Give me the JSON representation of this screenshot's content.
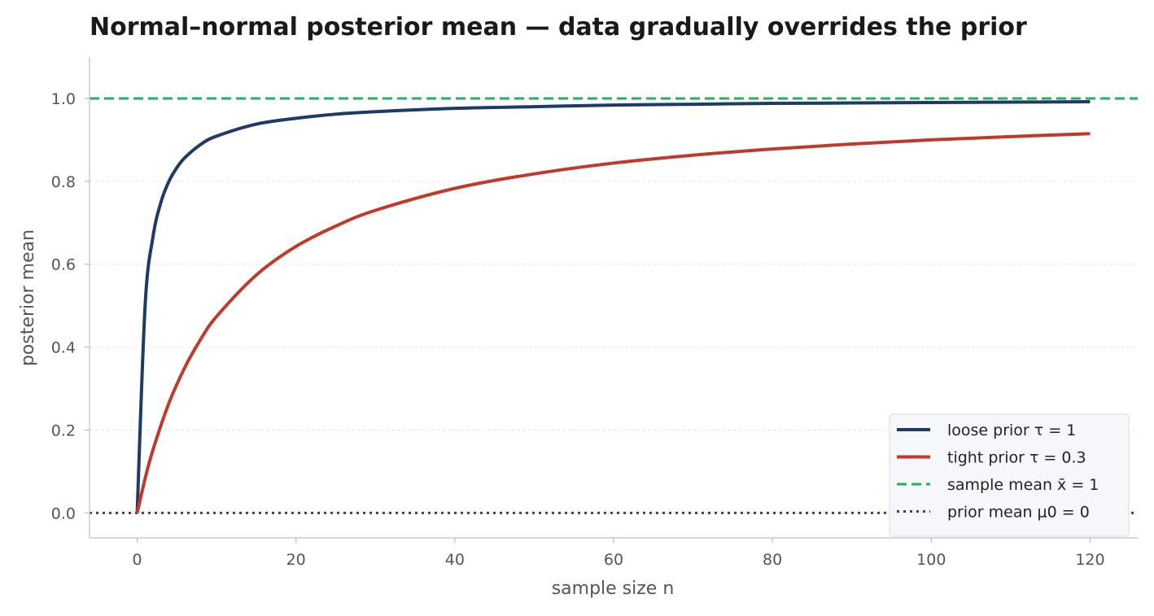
{
  "chart_data": {
    "type": "line",
    "title": "Normal–normal posterior mean — data gradually overrides the prior",
    "xlabel": "sample size n",
    "ylabel": "posterior mean",
    "xlim": [
      -6,
      126
    ],
    "ylim": [
      -0.06,
      1.1
    ],
    "x_ticks": [
      0,
      20,
      40,
      60,
      80,
      100,
      120
    ],
    "x_tick_labels": [
      "0",
      "20",
      "40",
      "60",
      "80",
      "100",
      "120"
    ],
    "y_ticks": [
      0.0,
      0.2,
      0.4,
      0.6,
      0.8,
      1.0
    ],
    "y_tick_labels": [
      "0.0",
      "0.2",
      "0.4",
      "0.6",
      "0.8",
      "1.0"
    ],
    "grid": "horizontal dashed",
    "legend_position": "lower-right",
    "series": [
      {
        "name": "loose prior  τ = 1",
        "color": "#1d3b66",
        "style": "solid",
        "x": [
          0,
          1,
          2,
          3,
          4,
          5,
          6,
          8,
          10,
          15,
          20,
          25,
          30,
          40,
          50,
          60,
          70,
          80,
          90,
          100,
          110,
          120
        ],
        "y": [
          0.0,
          0.5,
          0.667,
          0.75,
          0.8,
          0.833,
          0.857,
          0.889,
          0.909,
          0.938,
          0.952,
          0.962,
          0.968,
          0.976,
          0.98,
          0.984,
          0.986,
          0.988,
          0.989,
          0.99,
          0.991,
          0.992
        ]
      },
      {
        "name": "tight prior  τ = 0.3",
        "color": "#c0392b",
        "style": "solid",
        "x": [
          0,
          1,
          2,
          4,
          6,
          8,
          10,
          15,
          20,
          25,
          30,
          40,
          50,
          60,
          70,
          80,
          90,
          100,
          110,
          120
        ],
        "y": [
          0.0,
          0.083,
          0.153,
          0.265,
          0.351,
          0.419,
          0.474,
          0.574,
          0.643,
          0.692,
          0.73,
          0.783,
          0.818,
          0.844,
          0.863,
          0.878,
          0.89,
          0.9,
          0.908,
          0.915
        ]
      }
    ],
    "reference_lines": [
      {
        "name": "sample mean x̄ = 1",
        "y": 1.0,
        "color": "#27ae60",
        "style": "dashed"
      },
      {
        "name": "prior mean μ0 = 0",
        "y": 0.0,
        "color": "#444444",
        "style": "dotted"
      }
    ]
  }
}
